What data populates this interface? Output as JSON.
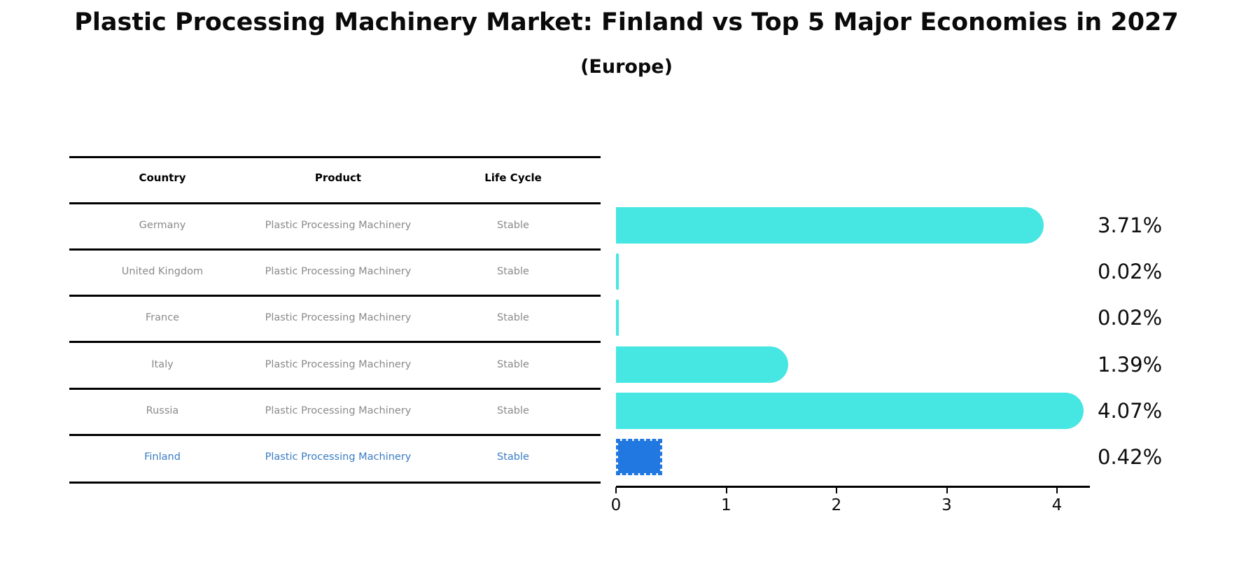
{
  "title": "Plastic Processing Machinery Market: Finland vs Top 5 Major Economies in 2027",
  "subtitle": "(Europe)",
  "table": {
    "headers": [
      "Country",
      "Product",
      "Life Cycle"
    ]
  },
  "chart_data": {
    "type": "bar",
    "orientation": "horizontal",
    "title": "Plastic Processing Machinery Market: Finland vs Top 5 Major Economies in 2027 (Europe)",
    "xlabel": "",
    "ylabel": "",
    "xlim": [
      0,
      4.3
    ],
    "x_ticks": [
      0,
      1,
      2,
      3,
      4
    ],
    "grid": false,
    "legend": "none",
    "bar_color": "#46e6e2",
    "highlight_color": "#2178e0",
    "highlight_text_color": "#3a7cc4",
    "rows": [
      {
        "country": "Germany",
        "product": "Plastic Processing Machinery",
        "life_cycle": "Stable",
        "value": 3.71,
        "label": "3.71%",
        "highlight": false
      },
      {
        "country": "United Kingdom",
        "product": "Plastic Processing Machinery",
        "life_cycle": "Stable",
        "value": 0.02,
        "label": "0.02%",
        "highlight": false
      },
      {
        "country": "France",
        "product": "Plastic Processing Machinery",
        "life_cycle": "Stable",
        "value": 0.02,
        "label": "0.02%",
        "highlight": false
      },
      {
        "country": "Italy",
        "product": "Plastic Processing Machinery",
        "life_cycle": "Stable",
        "value": 1.39,
        "label": "1.39%",
        "highlight": false
      },
      {
        "country": "Russia",
        "product": "Plastic Processing Machinery",
        "life_cycle": "Stable",
        "value": 4.07,
        "label": "4.07%",
        "highlight": false
      },
      {
        "country": "Finland",
        "product": "Plastic Processing Machinery",
        "life_cycle": "Stable",
        "value": 0.42,
        "label": "0.42%",
        "highlight": true
      }
    ]
  }
}
